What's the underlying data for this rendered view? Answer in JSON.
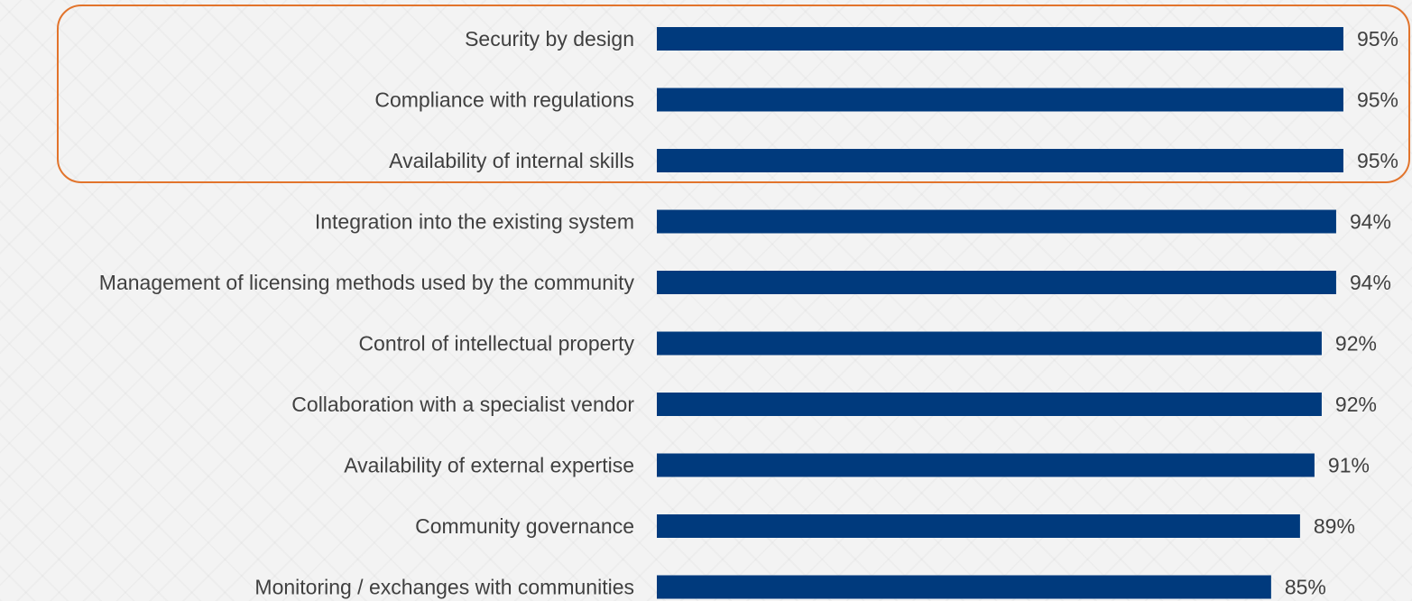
{
  "chart_data": {
    "type": "bar",
    "orientation": "horizontal",
    "categories": [
      "Security by design",
      "Compliance with regulations",
      "Availability of internal skills",
      "Integration into the existing system",
      "Management of licensing methods used by the community",
      "Control of intellectual property",
      "Collaboration with a specialist vendor",
      "Availability of external expertise",
      "Community governance",
      "Monitoring / exchanges with communities"
    ],
    "values": [
      95,
      95,
      95,
      94,
      94,
      92,
      92,
      91,
      89,
      85
    ],
    "value_labels": [
      "95%",
      "95%",
      "95%",
      "94%",
      "94%",
      "92%",
      "92%",
      "91%",
      "89%",
      "85%"
    ],
    "value_suffix": "%",
    "highlighted_categories": [
      "Security by design",
      "Compliance with regulations",
      "Availability of internal skills"
    ],
    "grid": false,
    "legend": "none",
    "bar_color": "#003a7d",
    "highlight_border_color": "#e2742c",
    "label_color": "#404040"
  }
}
